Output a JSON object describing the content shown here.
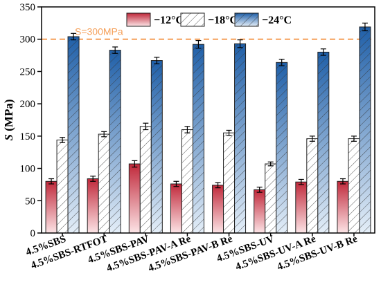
{
  "chart_data": {
    "type": "bar",
    "categories": [
      "4.5%SBS",
      "4.5%SBS-RTFOT",
      "4.5%SBS-PAV",
      "4.5%SBS-PAV-A Re",
      "4.5%SBS-PAV-B Re",
      "4.5%SBS-UV",
      "4.5%SBS-UV-A Re",
      "4.5%SBS-UV-B Re"
    ],
    "series": [
      {
        "name": "−12°C",
        "values": [
          80,
          84,
          107,
          76,
          74,
          67,
          79,
          80
        ],
        "errors": [
          4,
          4,
          5,
          4,
          4,
          4,
          4,
          4
        ],
        "color_top": "#c0283a",
        "color_bottom": "#fce4e6"
      },
      {
        "name": "−18°C",
        "values": [
          144,
          153,
          165,
          160,
          155,
          107,
          146,
          146
        ],
        "errors": [
          4,
          4,
          5,
          5,
          4,
          3,
          4,
          4
        ],
        "color": "#ffffff"
      },
      {
        "name": "−24°C",
        "values": [
          304,
          283,
          267,
          292,
          293,
          264,
          280,
          319
        ],
        "errors": [
          5,
          5,
          5,
          6,
          6,
          5,
          5,
          6
        ],
        "color_top": "#1f5fa8",
        "color_bottom": "#e4eef8"
      }
    ],
    "reference_line": {
      "value": 300,
      "label": "S=300MPa",
      "color": "#f5a05a"
    },
    "ylabel_italic": "S",
    "ylabel_rest": " (MPa)",
    "ylim": [
      0,
      350
    ],
    "yticks": [
      0,
      50,
      100,
      150,
      200,
      250,
      300,
      350
    ],
    "legend_position": "top-right"
  }
}
